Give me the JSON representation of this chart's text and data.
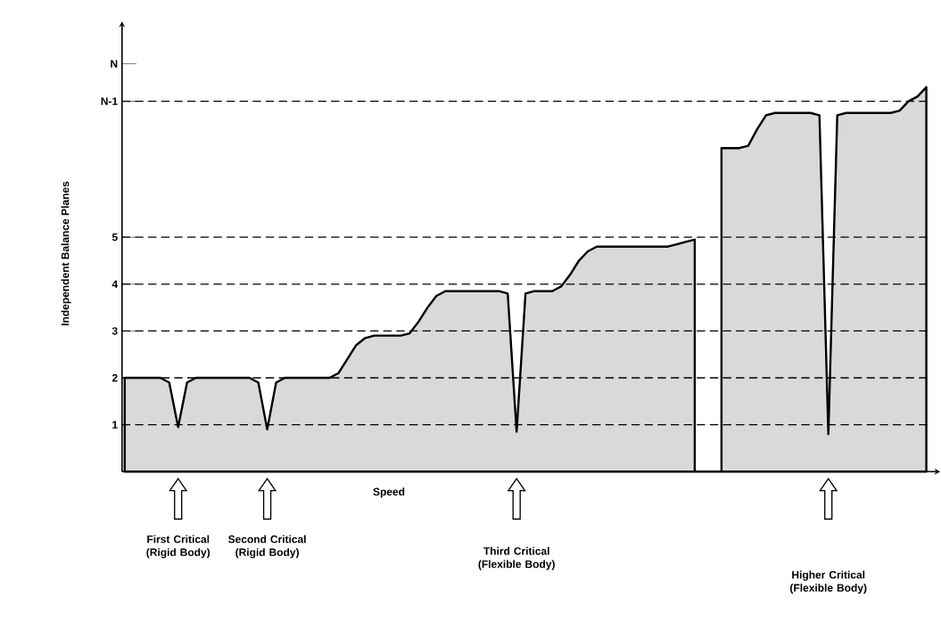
{
  "chart_data": {
    "type": "area",
    "xlabel": "Speed",
    "ylabel": "Independent Balance Planes",
    "categories": [
      null,
      null,
      null,
      null,
      null,
      null,
      null,
      null,
      null,
      null,
      null,
      null,
      null,
      null,
      null,
      null,
      null,
      null,
      null,
      null,
      null,
      null,
      null,
      null,
      null,
      null,
      null,
      null,
      null,
      null,
      null,
      null,
      null,
      null,
      null,
      null,
      null,
      null,
      null,
      null,
      null,
      null,
      null,
      null,
      null,
      null,
      null,
      null,
      null,
      null,
      null,
      null,
      null,
      null,
      null,
      null,
      null,
      null,
      null,
      null,
      null,
      null,
      null,
      null,
      null,
      null,
      null,
      null,
      null,
      null,
      null,
      null,
      null,
      null,
      null,
      null,
      null,
      null,
      null,
      null,
      null,
      null,
      null,
      null,
      null,
      null,
      null,
      null,
      null,
      null,
      null
    ],
    "ylim": [
      0,
      9.3
    ],
    "yticks": [
      1,
      2,
      3,
      4,
      5,
      {
        "value": 7.9,
        "label": "N-1"
      },
      {
        "value": 8.7,
        "label": "N"
      }
    ],
    "series": [
      {
        "color": "#d9d9d9",
        "values": [
          2,
          2,
          2,
          2,
          2,
          1.9,
          0.95,
          1.9,
          2,
          2,
          2,
          2,
          2,
          2,
          2,
          1.9,
          0.9,
          1.9,
          2,
          2,
          2,
          2,
          2,
          2,
          2.1,
          2.4,
          2.7,
          2.85,
          2.9,
          2.9,
          2.9,
          2.9,
          2.95,
          3.2,
          3.5,
          3.75,
          3.85,
          3.85,
          3.85,
          3.85,
          3.85,
          3.85,
          3.85,
          3.8,
          0.85,
          3.8,
          3.85,
          3.85,
          3.85,
          3.95,
          4.2,
          4.5,
          4.7,
          4.8,
          4.8,
          4.8,
          4.8,
          4.8,
          4.8,
          4.8,
          4.8,
          4.8,
          4.85,
          4.9,
          4.95,
          null,
          null,
          6.9,
          6.9,
          6.9,
          6.95,
          7.3,
          7.6,
          7.65,
          7.65,
          7.65,
          7.65,
          7.65,
          7.6,
          0.8,
          7.6,
          7.65,
          7.65,
          7.65,
          7.65,
          7.65,
          7.65,
          7.7,
          7.9,
          8.0,
          8.2
        ]
      }
    ],
    "ref_lines": [
      {
        "axis": "y",
        "value": 1,
        "line_style": "dashed"
      },
      {
        "axis": "y",
        "value": 2,
        "line_style": "dashed"
      },
      {
        "axis": "y",
        "value": 3,
        "line_style": "dashed"
      },
      {
        "axis": "y",
        "value": 4,
        "line_style": "dashed"
      },
      {
        "axis": "y",
        "value": 5,
        "line_style": "dashed"
      },
      {
        "axis": "y",
        "value": 7.9,
        "line_style": "dashed"
      }
    ],
    "annotations": [
      "First Critical (Rigid Body)",
      "Second Critical (Rigid Body)",
      "Third Critical (Flexible Body)",
      "Higher Critical (Flexible Body)"
    ],
    "grid": false
  }
}
